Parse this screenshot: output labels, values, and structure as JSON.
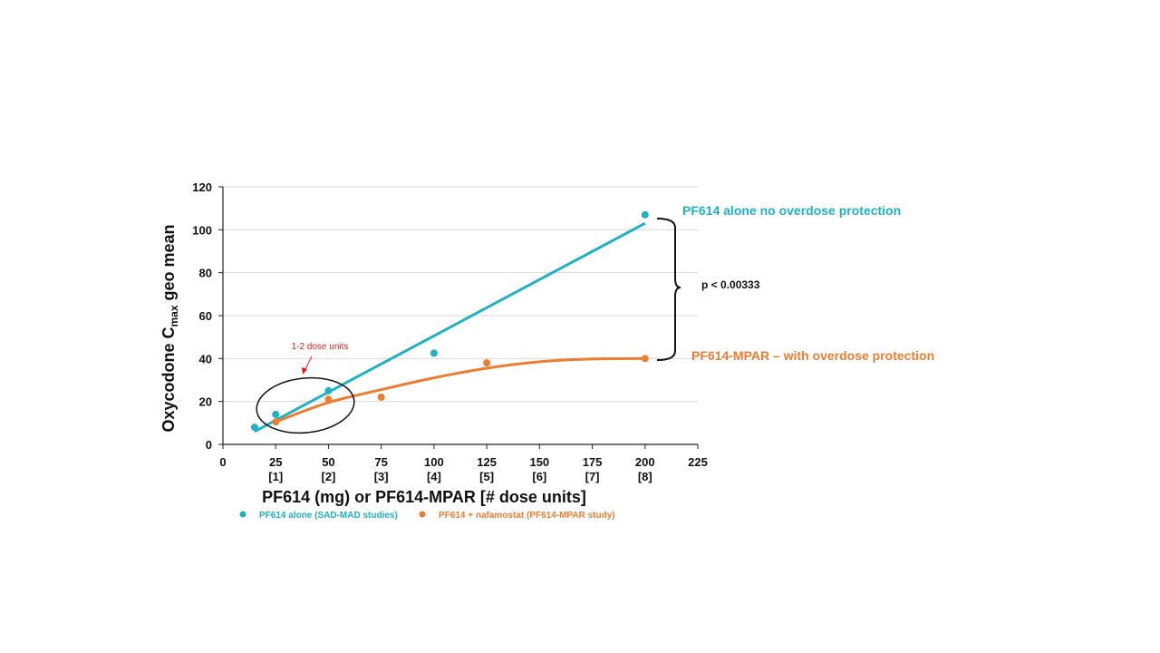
{
  "chart_data": {
    "type": "scatter",
    "ylabel_parts": {
      "pre": "Oxycodone C",
      "sub": "max",
      "post": " geo mean"
    },
    "xlabel": "PF614 (mg) or PF614-MPAR [# dose units]",
    "xlim": [
      0,
      225
    ],
    "ylim": [
      0,
      120
    ],
    "x_ticks": [
      0,
      25,
      50,
      75,
      100,
      125,
      150,
      175,
      200,
      225
    ],
    "y_ticks": [
      0,
      20,
      40,
      60,
      80,
      100,
      120
    ],
    "dose_unit_labels": [
      {
        "x": 25,
        "label": "[1]"
      },
      {
        "x": 50,
        "label": "[2]"
      },
      {
        "x": 75,
        "label": "[3]"
      },
      {
        "x": 100,
        "label": "[4]"
      },
      {
        "x": 125,
        "label": "[5]"
      },
      {
        "x": 150,
        "label": "[6]"
      },
      {
        "x": 175,
        "label": "[7]"
      },
      {
        "x": 200,
        "label": "[8]"
      }
    ],
    "grid": "horizontal",
    "series": [
      {
        "name": "PF614 alone (SAD-MAD studies)",
        "color": "#1fb2c4",
        "points": [
          [
            15,
            8
          ],
          [
            25,
            14
          ],
          [
            50,
            25
          ],
          [
            100,
            42.5
          ],
          [
            200,
            107
          ]
        ],
        "trend": {
          "type": "linear",
          "from": [
            15,
            6
          ],
          "to": [
            200,
            103
          ]
        }
      },
      {
        "name": "PF614 + nafamostat (PF614-MPAR study)",
        "color": "#ed7d31",
        "points": [
          [
            25,
            10.5
          ],
          [
            50,
            21
          ],
          [
            75,
            22
          ],
          [
            125,
            38
          ],
          [
            200,
            40
          ]
        ],
        "trend": {
          "type": "curve",
          "points": [
            [
              25,
              10.5
            ],
            [
              50,
              19.5
            ],
            [
              75,
              25.5
            ],
            [
              100,
              31
            ],
            [
              125,
              35.5
            ],
            [
              150,
              38.5
            ],
            [
              175,
              39.8
            ],
            [
              200,
              40
            ]
          ]
        }
      }
    ],
    "annotations": {
      "alone_label": "PF614 alone no overdose protection",
      "mpar_label": "PF614-MPAR – with overdose protection",
      "pvalue": "p < 0.00333",
      "dose_units_note": "1-2 dose units"
    }
  }
}
